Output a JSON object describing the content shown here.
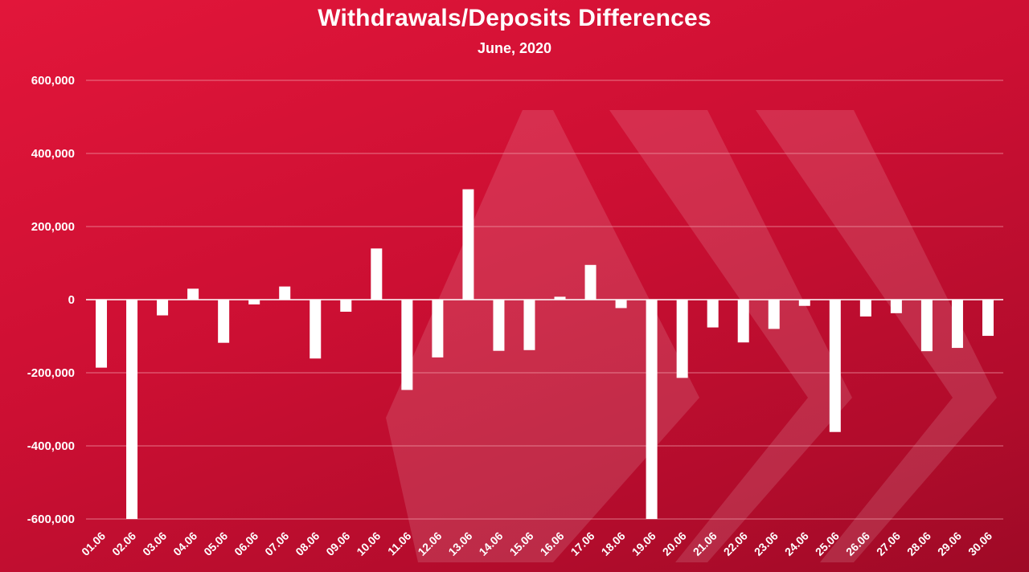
{
  "colors": {
    "background_top": "#e2163a",
    "background_bottom": "#9e0a26",
    "bar": "#ffffff",
    "gridline": "#f2a0ad",
    "text": "#ffffff",
    "watermark": "#ffffff"
  },
  "watermark_icon": "hive-logo-icon",
  "chart_data": {
    "type": "bar",
    "title": "Withdrawals/Deposits Differences",
    "subtitle": "June, 2020",
    "xlabel": "",
    "ylabel": "",
    "ylim": [
      -600000,
      600000
    ],
    "yticks": [
      600000,
      400000,
      200000,
      0,
      -200000,
      -400000,
      -600000
    ],
    "ytick_labels": [
      "600,000",
      "400,000",
      "200,000",
      "0",
      "-200,000",
      "-400,000",
      "-600,000"
    ],
    "grid": true,
    "categories": [
      "01.06",
      "02.06",
      "03.06",
      "04.06",
      "05.06",
      "06.06",
      "07.06",
      "08.06",
      "09.06",
      "10.06",
      "11.06",
      "12.06",
      "13.06",
      "14.06",
      "15.06",
      "16.06",
      "17.06",
      "18.06",
      "19.06",
      "20.06",
      "21.06",
      "22.06",
      "23.06",
      "24.06",
      "25.06",
      "26.06",
      "27.06",
      "28.06",
      "29.06",
      "30.06"
    ],
    "values": [
      -186000,
      -600000,
      -43000,
      30000,
      -118000,
      -13000,
      36000,
      -161000,
      -33000,
      140000,
      -247000,
      -158000,
      302000,
      -140000,
      -138000,
      8000,
      95000,
      -23000,
      -600000,
      -214000,
      -76000,
      -117000,
      -80000,
      -17000,
      -362000,
      -46000,
      -37000,
      -141000,
      -132000,
      -99000
    ]
  }
}
